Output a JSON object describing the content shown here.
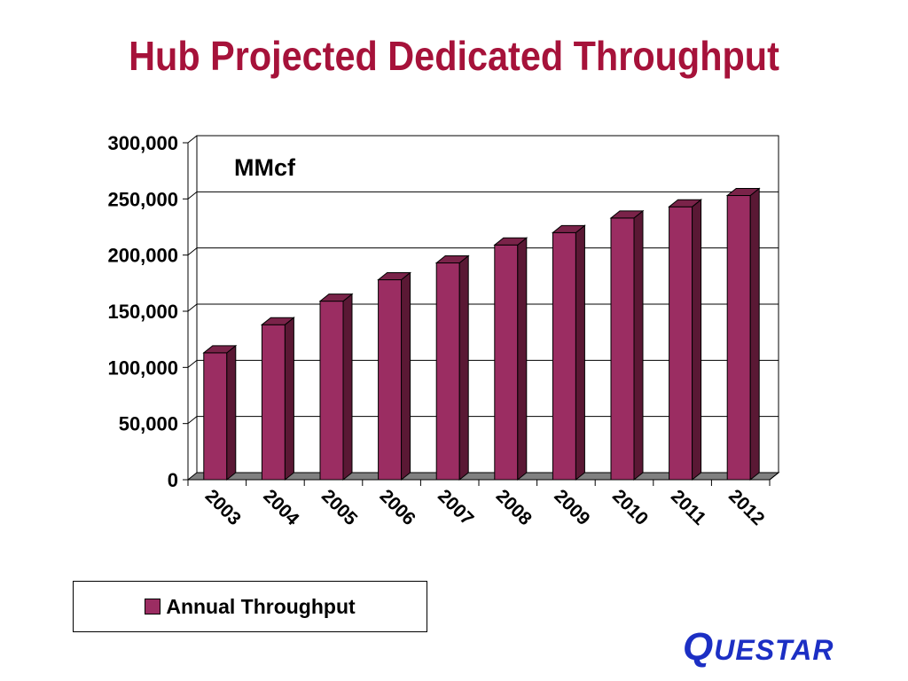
{
  "slide": {
    "title": "Hub Projected Dedicated Throughput",
    "logo_text": "QUESTAR",
    "colors": {
      "title": "#a6123a",
      "bar": "#9b2d62",
      "logo": "#1c2fc4"
    }
  },
  "chart_data": {
    "type": "bar",
    "title": "Hub Projected Dedicated Throughput",
    "annotation": "MMcf",
    "categories": [
      "2003",
      "2004",
      "2005",
      "2006",
      "2007",
      "2008",
      "2009",
      "2010",
      "2011",
      "2012"
    ],
    "series": [
      {
        "name": "Annual Throughput",
        "values": [
          113000,
          138000,
          159000,
          178000,
          193000,
          209000,
          220000,
          233000,
          243000,
          253000
        ]
      }
    ],
    "ylim": [
      0,
      300000
    ],
    "yticks": [
      "0",
      "50,000",
      "100,000",
      "150,000",
      "200,000",
      "250,000",
      "300,000"
    ],
    "ytick_values": [
      0,
      50000,
      100000,
      150000,
      200000,
      250000,
      300000
    ],
    "xlabel": "",
    "ylabel": "",
    "grid": true,
    "legend": "bottom-left"
  }
}
